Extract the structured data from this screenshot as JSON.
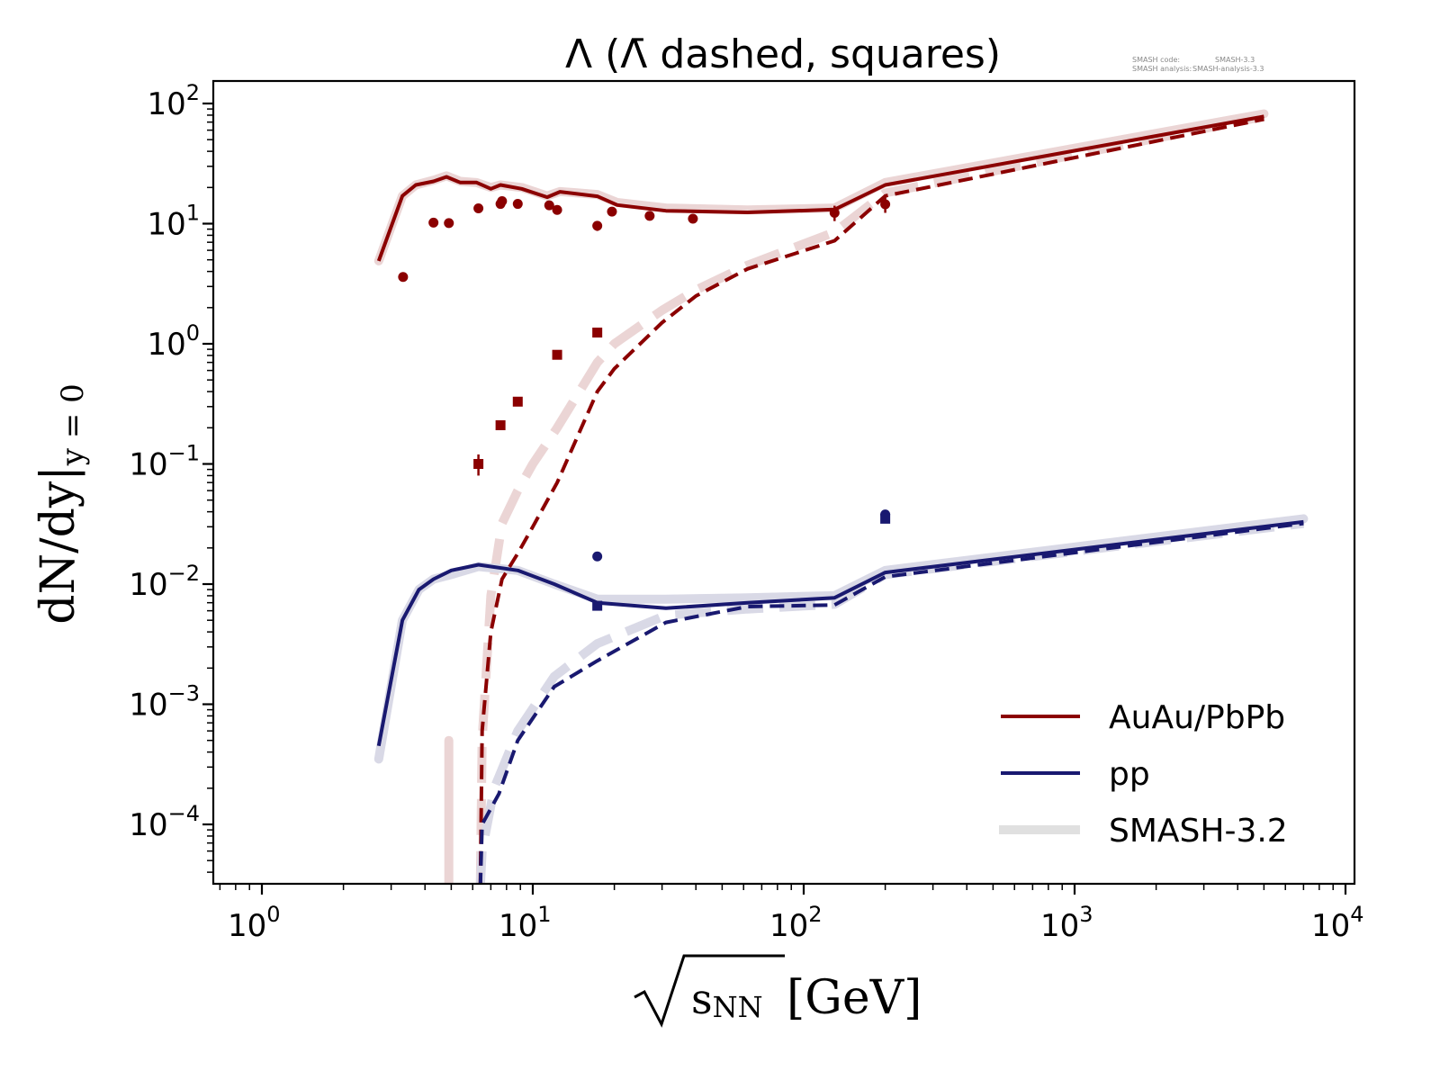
{
  "chart_data": {
    "type": "line",
    "title": "Λ (Λ̄ dashed, squares)",
    "xlabel_prefix": "√",
    "xlabel_var": "s",
    "xlabel_sub": "NN",
    "xlabel_unit": "[GeV]",
    "ylabel_main": "dN/dy|",
    "ylabel_sub": "y = 0",
    "xscale": "log",
    "yscale": "log",
    "xlim": [
      0.65,
      11000
    ],
    "ylim": [
      3e-05,
      160
    ],
    "grid": false,
    "legend_placement": "lower-right",
    "x_ticks": [
      {
        "base": "10",
        "exp": "0",
        "value": 1
      },
      {
        "base": "10",
        "exp": "1",
        "value": 10
      },
      {
        "base": "10",
        "exp": "2",
        "value": 100
      },
      {
        "base": "10",
        "exp": "3",
        "value": 1000
      },
      {
        "base": "10",
        "exp": "4",
        "value": 10000
      }
    ],
    "y_ticks": [
      {
        "base": "10",
        "exp": "2",
        "value": 100
      },
      {
        "base": "10",
        "exp": "1",
        "value": 10
      },
      {
        "base": "10",
        "exp": "0",
        "value": 1
      },
      {
        "base": "10",
        "exp": "−1",
        "value": 0.1
      },
      {
        "base": "10",
        "exp": "−2",
        "value": 0.01
      },
      {
        "base": "10",
        "exp": "−3",
        "value": 0.001
      },
      {
        "base": "10",
        "exp": "−4",
        "value": 0.0001
      }
    ],
    "colors": {
      "auau": "#8b0000",
      "pp": "#191970",
      "auau_ref": "#ebd5d5",
      "pp_ref": "#d9d9e6",
      "legend_ref": "#e0e0e0"
    },
    "legend": [
      {
        "label": "AuAu/PbPb",
        "style": "auau"
      },
      {
        "label": "pp",
        "style": "pp"
      },
      {
        "label": "SMASH-3.2",
        "style": "ref"
      }
    ],
    "series": [
      {
        "name": "AuAu/PbPb Λ (SMASH-3.2)",
        "system": "auau",
        "kind": "reference",
        "dashed": false,
        "x": [
          2.7,
          3.3,
          3.7,
          4.3,
          4.8,
          5.4,
          6.2,
          7.0,
          7.6,
          9.1,
          11.3,
          12.6,
          17.3,
          20.5,
          31,
          62,
          130,
          200,
          5000
        ],
        "y": [
          4.9,
          17,
          21,
          23,
          25,
          22.5,
          22,
          20,
          21,
          20,
          17,
          18.5,
          17.5,
          15,
          13.5,
          13,
          13.5,
          22,
          82
        ]
      },
      {
        "name": "AuAu/PbPb Λ̄ (SMASH-3.2)",
        "system": "auau",
        "kind": "reference",
        "dashed": true,
        "x": [
          6.4,
          6.5,
          7.0,
          7.7,
          8.8,
          10,
          12.3,
          17.3,
          20,
          30,
          40,
          62,
          130,
          200,
          5000
        ],
        "y": [
          3e-05,
          0.0005,
          0.008,
          0.032,
          0.06,
          0.1,
          0.2,
          0.7,
          1.0,
          1.9,
          2.8,
          4.5,
          8.5,
          18,
          78
        ]
      },
      {
        "name": "AuAu/PbPb Λ̄ low-energy (SMASH-3.2)",
        "system": "auau",
        "kind": "reference",
        "dashed": false,
        "x": [
          4.9,
          4.9
        ],
        "y": [
          3e-05,
          0.0005
        ]
      },
      {
        "name": "AuAu/PbPb Λ",
        "system": "auau",
        "kind": "model",
        "dashed": false,
        "x": [
          2.7,
          3.3,
          3.7,
          4.3,
          4.8,
          5.4,
          6.2,
          7.0,
          7.6,
          9.1,
          11.3,
          12.6,
          17.3,
          20.5,
          31,
          62,
          130,
          200,
          5000
        ],
        "y": [
          4.9,
          17,
          21,
          22.5,
          24.5,
          22,
          22,
          19.5,
          21,
          19.5,
          16.6,
          18.4,
          16.9,
          14.3,
          12.8,
          12.4,
          13.1,
          21,
          78
        ]
      },
      {
        "name": "AuAu/PbPb Λ̄",
        "system": "auau",
        "kind": "model",
        "dashed": true,
        "x": [
          6.4,
          6.5,
          7.0,
          7.7,
          8.8,
          10,
          12.3,
          17.3,
          20,
          30,
          40,
          62,
          130,
          200,
          5000
        ],
        "y": [
          3e-05,
          0.0006,
          0.004,
          0.011,
          0.018,
          0.03,
          0.07,
          0.4,
          0.62,
          1.5,
          2.5,
          4.2,
          7.2,
          17,
          74
        ]
      },
      {
        "name": "pp Λ (SMASH-3.2)",
        "system": "pp",
        "kind": "reference",
        "dashed": false,
        "x": [
          2.7,
          3.3,
          3.8,
          4.3,
          5,
          6.3,
          8.8,
          12,
          17.3,
          31,
          62,
          130,
          200,
          7000
        ],
        "y": [
          0.00035,
          0.005,
          0.009,
          0.011,
          0.012,
          0.014,
          0.013,
          0.01,
          0.0075,
          0.0075,
          0.0077,
          0.008,
          0.013,
          0.035
        ]
      },
      {
        "name": "pp Λ̄ (SMASH-3.2)",
        "system": "pp",
        "kind": "reference",
        "dashed": true,
        "x": [
          6.4,
          6.5,
          7.2,
          8.8,
          12,
          17.3,
          31,
          62,
          130,
          200,
          7000
        ],
        "y": [
          3e-05,
          6e-05,
          0.0002,
          0.0006,
          0.0017,
          0.0032,
          0.0055,
          0.0062,
          0.0068,
          0.012,
          0.032
        ]
      },
      {
        "name": "pp Λ",
        "system": "pp",
        "kind": "model",
        "dashed": false,
        "x": [
          2.7,
          3.3,
          3.8,
          4.3,
          5,
          6.3,
          8.8,
          12,
          17.3,
          31,
          62,
          130,
          200,
          7000
        ],
        "y": [
          0.00045,
          0.005,
          0.009,
          0.011,
          0.013,
          0.0145,
          0.013,
          0.01,
          0.007,
          0.0063,
          0.007,
          0.0077,
          0.0125,
          0.033
        ]
      },
      {
        "name": "pp Λ̄",
        "system": "pp",
        "kind": "model",
        "dashed": true,
        "x": [
          6.4,
          6.5,
          7.5,
          8.8,
          12,
          17.3,
          31,
          62,
          130,
          200,
          7000
        ],
        "y": [
          3e-05,
          0.0001,
          0.00018,
          0.0005,
          0.0014,
          0.0023,
          0.0048,
          0.0065,
          0.0067,
          0.0115,
          0.032
        ]
      }
    ],
    "measurements": [
      {
        "name": "AuAu/PbPb Λ data",
        "system": "auau",
        "marker": "circle",
        "x": [
          3.32,
          4.3,
          4.9,
          6.3,
          7.6,
          7.7,
          8.8,
          11.5,
          12.3,
          17.3,
          19.6,
          27,
          39,
          130,
          200
        ],
        "y": [
          3.6,
          10.2,
          10.1,
          13.4,
          14.6,
          15.4,
          14.6,
          14.2,
          13.0,
          9.6,
          12.6,
          11.6,
          11.0,
          12.3,
          14.5
        ],
        "yerr": [
          0,
          0,
          0,
          0,
          0,
          0,
          0,
          0,
          0,
          0.9,
          0,
          0,
          0,
          1.8,
          2.2
        ]
      },
      {
        "name": "AuAu/PbPb Λ̄ data",
        "system": "auau",
        "marker": "square",
        "x": [
          6.3,
          7.6,
          8.8,
          12.3,
          17.3
        ],
        "y": [
          0.1,
          0.21,
          0.33,
          0.81,
          1.24
        ],
        "yerr": [
          0.02,
          0,
          0,
          0,
          0.1
        ]
      },
      {
        "name": "pp Λ data",
        "system": "pp",
        "marker": "circle",
        "x": [
          17.3,
          200
        ],
        "y": [
          0.017,
          0.038
        ],
        "yerr": [
          0,
          0
        ]
      },
      {
        "name": "pp Λ̄ data",
        "system": "pp",
        "marker": "square",
        "x": [
          17.3,
          200
        ],
        "y": [
          0.0066,
          0.035
        ],
        "yerr": [
          0,
          0
        ]
      }
    ]
  },
  "meta": {
    "code_label": "SMASH code:",
    "code_value": "SMASH-3.3",
    "analysis_label": "SMASH analysis:",
    "analysis_value": "SMASH-analysis-3.3"
  }
}
